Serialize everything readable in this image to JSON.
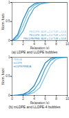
{
  "chart_data": [
    {
      "type": "line",
      "title": "(a) LDPE and LLDPE bubbles",
      "x_label": "Relaxation (s)",
      "y_label": "Norm. haze",
      "xlim": [
        0,
        10
      ],
      "xticks": [
        0,
        2,
        4,
        6,
        8,
        10
      ],
      "ylim": [
        0,
        1
      ],
      "yticks": [
        0,
        0.5,
        1
      ],
      "legend": "lower right",
      "x": [
        0,
        1,
        2,
        3,
        4,
        5,
        6,
        7,
        8,
        9,
        10
      ],
      "series": [
        {
          "name": "PE/LDPE, BUR = 2.4 TUR = 10.8",
          "color": "#7cc3e8",
          "values": [
            0,
            0.1,
            0.4,
            0.75,
            0.92,
            0.98,
            1,
            1,
            1,
            1,
            1
          ]
        },
        {
          "name": "PE/LDPE, BUR = 2.4 TUR = 12.5",
          "color": "#3fa2d6",
          "values": [
            0,
            0.05,
            0.25,
            0.6,
            0.85,
            0.95,
            0.99,
            1,
            1,
            1,
            1
          ]
        },
        {
          "name": "PE/LDPE/PEB, BUR = 2.4 TUR = 10.8",
          "color": "#1f7fb8",
          "values": [
            0,
            0.15,
            0.55,
            0.85,
            0.96,
            1,
            1,
            1,
            1,
            1,
            1
          ]
        }
      ]
    },
    {
      "type": "line",
      "title": "(b) mLDPE and LLDPE-4 bubbles",
      "x_label": "Relaxation (s)",
      "y_label": "Norm. haze",
      "xlim": [
        0,
        10
      ],
      "xticks": [
        0,
        2,
        4,
        6,
        8,
        10
      ],
      "ylim": [
        0,
        1
      ],
      "yticks": [
        0,
        0.5,
        1
      ],
      "legend": "upper left",
      "x": [
        0,
        1,
        2,
        3,
        4,
        5,
        6,
        7,
        8,
        9,
        10
      ],
      "series": [
        {
          "name": "PEBDA",
          "color": "#7cc3e8",
          "values": [
            0,
            0,
            0.01,
            0.03,
            0.08,
            0.2,
            0.5,
            0.8,
            0.95,
            0.99,
            1
          ]
        },
        {
          "name": "mLDPE",
          "color": "#3fa2d6",
          "values": [
            0,
            0,
            0.02,
            0.05,
            0.15,
            0.35,
            0.7,
            0.92,
            0.99,
            1,
            1
          ]
        },
        {
          "name": "mLDPE/PEBDA",
          "color": "#1f7fb8",
          "values": [
            0,
            0.01,
            0.03,
            0.1,
            0.25,
            0.55,
            0.85,
            0.97,
            1,
            1,
            1
          ]
        }
      ]
    }
  ]
}
